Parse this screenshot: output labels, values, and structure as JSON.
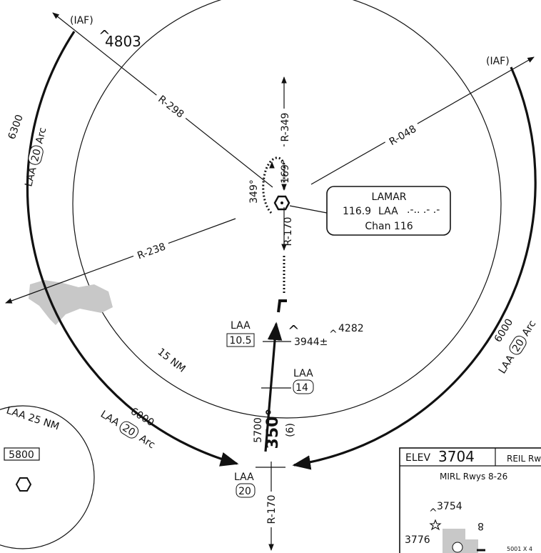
{
  "fixes": {
    "iaf_left": "(IAF)",
    "iaf_right": "(IAF)"
  },
  "obstacles": {
    "north_west": "4803",
    "east_of_course": "4282",
    "spot": "3944±",
    "airport_nw": "3754",
    "airport_w": "3776"
  },
  "radials": {
    "r298": "R-298",
    "r349": "R-349",
    "r048": "R-048",
    "r238": "R-238",
    "r170_inner": "R-170",
    "r170_outer": "R-170"
  },
  "hold": {
    "inbound": "169°",
    "outbound": "349°"
  },
  "navaid": {
    "name": "LAMAR",
    "freq": "116.9",
    "ident": "LAA",
    "channel": "Chan 116",
    "morse": ".-.. .- .-"
  },
  "arcs": {
    "left_altitude": "6300",
    "left_name_pre": "LAA",
    "left_dme": "20",
    "left_name_post": "Arc",
    "bottom_altitude": "6000",
    "bottom_name_pre": "LAA",
    "bottom_dme": "20",
    "bottom_name_post": "Arc",
    "right_altitude": "6000",
    "right_name_pre": "LAA",
    "right_dme": "20",
    "right_name_post": "Arc"
  },
  "ring_label": "15 NM",
  "dme_fixes": {
    "fix1_ident": "LAA",
    "fix1_dme": "10.5",
    "fix2_ident": "LAA",
    "fix2_dme": "14",
    "fix3_ident": "LAA",
    "fix3_dme": "20"
  },
  "final": {
    "course": "350°",
    "altitude": "5700",
    "distance": "(6)"
  },
  "msa": {
    "title": "LAA 25 NM",
    "altitude": "5800"
  },
  "airport": {
    "elev_label": "ELEV",
    "elev_value": "3704",
    "reil": "REIL Rw",
    "mirl": "MIRL Rwys 8-26",
    "runway_num": "8",
    "runway_dims": "5001 X 4"
  },
  "colors": {
    "terrain": "#c8c8c8",
    "ink": "#111111"
  }
}
